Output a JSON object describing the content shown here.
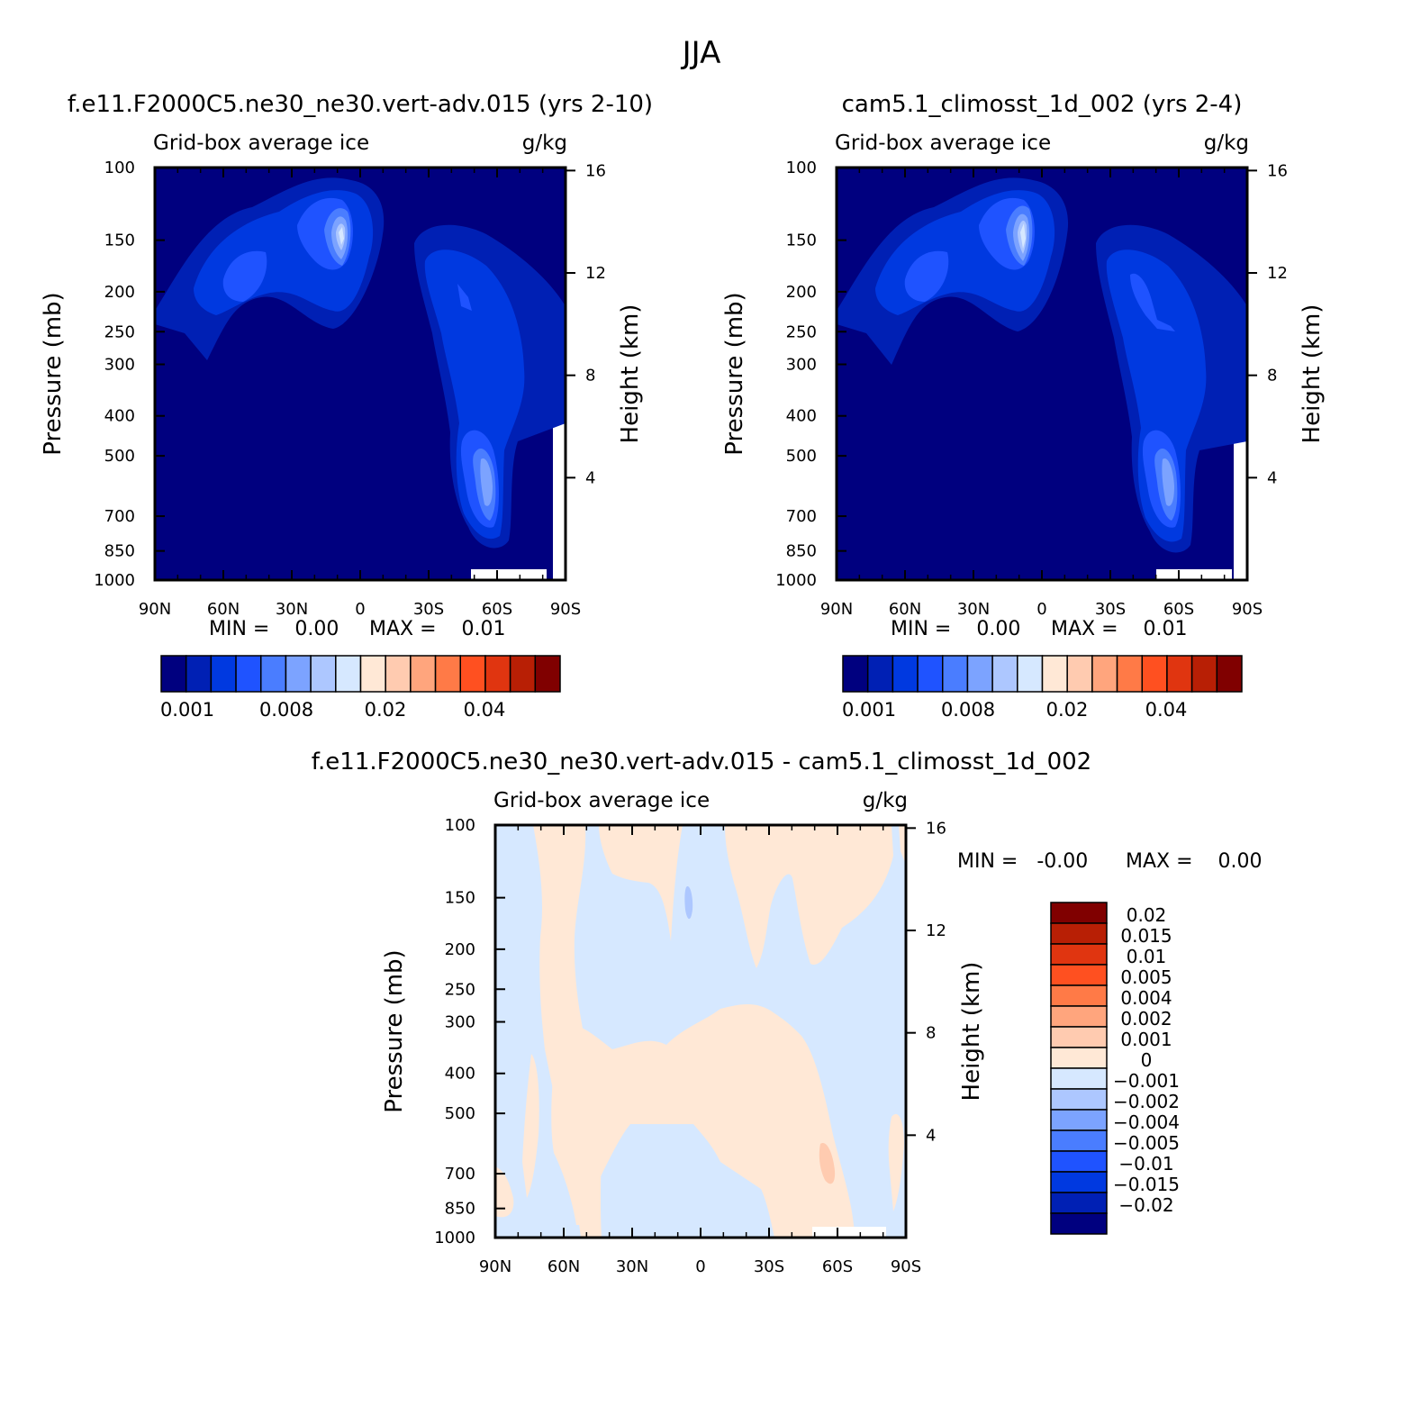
{
  "page_title": "JJA",
  "colors": {
    "cb_abs": [
      "#00007f",
      "#0020b4",
      "#0039e0",
      "#1f53ff",
      "#4a7dff",
      "#7ca3ff",
      "#adc7ff",
      "#d6e8ff",
      "#ffe8d6",
      "#ffcbb0",
      "#ffa57d",
      "#ff7a47",
      "#ff5020",
      "#e03510",
      "#b81f05",
      "#800000"
    ],
    "cb_diff": [
      "#800000",
      "#b81f05",
      "#e03510",
      "#ff5020",
      "#ff7a47",
      "#ffa57d",
      "#ffcbb0",
      "#ffe8d6",
      "#d6e8ff",
      "#adc7ff",
      "#7ca3ff",
      "#4a7dff",
      "#1f53ff",
      "#0039e0",
      "#0020b4",
      "#00007f"
    ]
  },
  "chart_data": [
    {
      "type": "heatmap",
      "title": "f.e11.F2000C5.ne30_ne30.vert-adv.015 (yrs 2-10)",
      "left_label": "Grid-box average ice",
      "units": "g/kg",
      "ylabel": "Pressure (mb)",
      "y2label": "Height (km)",
      "x_ticks": [
        "90N",
        "60N",
        "30N",
        "0",
        "30S",
        "60S",
        "90S"
      ],
      "y_ticks": [
        "100",
        "150",
        "200",
        "250",
        "300",
        "400",
        "500",
        "700",
        "850",
        "1000"
      ],
      "y2_ticks": [
        "16",
        "12",
        "8",
        "4"
      ],
      "min_text": "MIN =    0.00",
      "max_text": "MAX =    0.01",
      "colorbar_labels": [
        "0.001",
        "0.008",
        "0.02",
        "0.04"
      ]
    },
    {
      "type": "heatmap",
      "title": "cam5.1_climosst_1d_002 (yrs 2-4)",
      "left_label": "Grid-box average ice",
      "units": "g/kg",
      "ylabel": "Pressure (mb)",
      "y2label": "Height (km)",
      "x_ticks": [
        "90N",
        "60N",
        "30N",
        "0",
        "30S",
        "60S",
        "90S"
      ],
      "y_ticks": [
        "100",
        "150",
        "200",
        "250",
        "300",
        "400",
        "500",
        "700",
        "850",
        "1000"
      ],
      "y2_ticks": [
        "16",
        "12",
        "8",
        "4"
      ],
      "min_text": "MIN =    0.00",
      "max_text": "MAX =    0.01",
      "colorbar_labels": [
        "0.001",
        "0.008",
        "0.02",
        "0.04"
      ]
    },
    {
      "type": "heatmap",
      "title": "f.e11.F2000C5.ne30_ne30.vert-adv.015 - cam5.1_climosst_1d_002",
      "left_label": "Grid-box average ice",
      "units": "g/kg",
      "ylabel": "Pressure (mb)",
      "y2label": "Height (km)",
      "x_ticks": [
        "90N",
        "60N",
        "30N",
        "0",
        "30S",
        "60S",
        "90S"
      ],
      "y_ticks": [
        "100",
        "150",
        "200",
        "250",
        "300",
        "400",
        "500",
        "700",
        "850",
        "1000"
      ],
      "y2_ticks": [
        "16",
        "12",
        "8",
        "4"
      ],
      "min_text": "MIN =   -0.00",
      "max_text": "MAX =    0.00",
      "colorbar_labels": [
        "0.02",
        "0.015",
        "0.01",
        "0.005",
        "0.004",
        "0.002",
        "0.001",
        "0",
        "-0.001",
        "-0.002",
        "-0.004",
        "-0.005",
        "-0.01",
        "-0.015",
        "-0.02"
      ]
    }
  ]
}
